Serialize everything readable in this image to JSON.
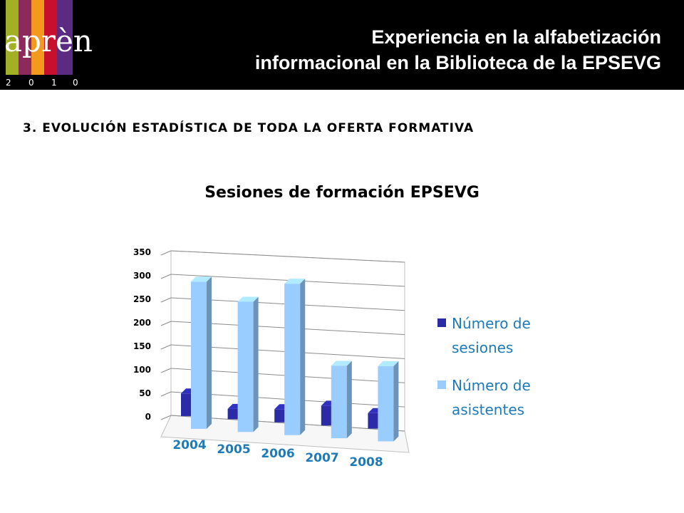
{
  "header": {
    "logo_text": "aprèn",
    "logo_year_digits": [
      "2",
      "0",
      "1",
      "0"
    ],
    "logo_bar_colors": [
      "#a2b025",
      "#8c2a5c",
      "#f39a1e",
      "#c8102e",
      "#5b2a83"
    ],
    "title_line1": "Experiencia en la alfabetización",
    "title_line2": "informacional en la Biblioteca de la EPSEVG"
  },
  "section": {
    "title": "3. EVOLUCIÓN ESTADÍSTICA DE TODA LA OFERTA FORMATIVA"
  },
  "chart_data": {
    "type": "bar",
    "title": "Sesiones de formación EPSEVG",
    "categories": [
      "2004",
      "2005",
      "2006",
      "2007",
      "2008"
    ],
    "series": [
      {
        "name": "Número de sesiones",
        "values": [
          48,
          22,
          28,
          42,
          33
        ],
        "color": "#2b2ba8"
      },
      {
        "name": "Número de asistentes",
        "values": [
          313,
          277,
          322,
          154,
          160
        ],
        "color": "#99ccff"
      }
    ],
    "ylim": [
      0,
      350
    ],
    "yticks": [
      "0",
      "50",
      "100",
      "150",
      "200",
      "250",
      "300",
      "350"
    ],
    "grid": true,
    "legend_position": "right",
    "legend_lines": [
      [
        "Número de",
        "sesiones"
      ],
      [
        "Número de",
        "asistentes"
      ]
    ],
    "category_label_color": "#1f7ab8"
  }
}
